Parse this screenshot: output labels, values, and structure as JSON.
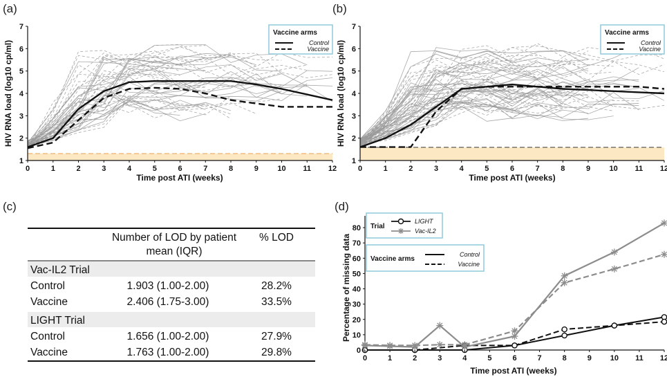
{
  "panels": {
    "a": "(a)",
    "b": "(b)",
    "c": "(c)",
    "d": "(d)"
  },
  "colors": {
    "individual": "#9a9a9a",
    "mean": "#111111",
    "lod_band": "#fde8c4",
    "lod_line": "#e8a050",
    "legend_border": "#8fc9dc",
    "series_light": "#111111",
    "series_vac_il2": "#8c8c8c",
    "table_stripe": "#ececec"
  },
  "chart_data": [
    {
      "id": "a",
      "type": "line",
      "xlabel": "Time post ATI (weeks)",
      "ylabel": "HIV RNA load (log10 cp/ml)",
      "xlim": [
        0,
        12
      ],
      "ylim": [
        1,
        7
      ],
      "xticks": [
        0,
        1,
        2,
        3,
        4,
        5,
        6,
        7,
        8,
        9,
        10,
        11,
        12
      ],
      "yticks": [
        1,
        2,
        3,
        4,
        5,
        6,
        7
      ],
      "lod": 1.3,
      "legend": {
        "title": "Vaccine arms",
        "position": "top-right",
        "items": [
          {
            "name": "Control",
            "style": "solid"
          },
          {
            "name": "Vaccine",
            "style": "dashed"
          }
        ]
      },
      "series": [
        {
          "name": "Control",
          "style": "solid",
          "x": [
            0,
            1,
            2,
            3,
            4,
            5,
            6,
            7,
            8,
            9,
            10,
            11,
            12
          ],
          "y": [
            1.6,
            2.0,
            3.3,
            4.1,
            4.5,
            4.55,
            4.55,
            4.55,
            4.55,
            4.4,
            4.2,
            3.95,
            3.7
          ]
        },
        {
          "name": "Vaccine",
          "style": "dashed",
          "x": [
            0,
            1,
            2,
            3,
            4,
            5,
            6,
            7,
            8,
            9,
            10,
            11,
            12
          ],
          "y": [
            1.55,
            1.8,
            2.8,
            3.8,
            4.2,
            4.25,
            4.2,
            4.0,
            3.7,
            3.55,
            3.4,
            3.4,
            3.4
          ]
        }
      ]
    },
    {
      "id": "b",
      "type": "line",
      "xlabel": "Time post ATI (weeks)",
      "ylabel": "HIV RNA load (log10 cp/ml)",
      "xlim": [
        0,
        12
      ],
      "ylim": [
        1,
        7
      ],
      "xticks": [
        0,
        1,
        2,
        3,
        4,
        5,
        6,
        7,
        8,
        9,
        10,
        11,
        12
      ],
      "yticks": [
        1,
        2,
        3,
        4,
        5,
        6,
        7
      ],
      "lod": 1.6,
      "legend": {
        "title": "Vaccine arms",
        "position": "top-right",
        "items": [
          {
            "name": "Control",
            "style": "solid"
          },
          {
            "name": "Vaccine",
            "style": "dashed"
          }
        ]
      },
      "series": [
        {
          "name": "Control",
          "style": "solid",
          "x": [
            0,
            1,
            2,
            3,
            4,
            5,
            6,
            7,
            8,
            9,
            10,
            11,
            12
          ],
          "y": [
            1.6,
            2.0,
            2.6,
            3.4,
            4.2,
            4.3,
            4.4,
            4.3,
            4.2,
            4.15,
            4.1,
            4.05,
            4.0
          ]
        },
        {
          "name": "Vaccine",
          "style": "dashed",
          "x": [
            0,
            1,
            2,
            3,
            4,
            5,
            6,
            7,
            8,
            9,
            10,
            11,
            12
          ],
          "y": [
            1.6,
            1.6,
            1.6,
            3.2,
            4.2,
            4.3,
            4.3,
            4.3,
            4.3,
            4.3,
            4.3,
            4.3,
            4.2
          ]
        }
      ]
    },
    {
      "id": "c",
      "type": "table",
      "columns": [
        "",
        "Number of LOD by patient mean (IQR)",
        "% LOD"
      ],
      "groups": [
        {
          "title": "Vac-IL2 Trial",
          "rows": [
            {
              "arm": "Control",
              "lod": "1.903 (1.00-2.00)",
              "pct": "28.2%"
            },
            {
              "arm": "Vaccine",
              "lod": "2.406 (1.75-3.00)",
              "pct": "33.5%"
            }
          ]
        },
        {
          "title": "LIGHT Trial",
          "rows": [
            {
              "arm": "Control",
              "lod": "1.656 (1.00-2.00)",
              "pct": "27.9%"
            },
            {
              "arm": "Vaccine",
              "lod": "1.763 (1.00-2.00)",
              "pct": "29.8%"
            }
          ]
        }
      ]
    },
    {
      "id": "d",
      "type": "line",
      "xlabel": "Time post ATI (weeks)",
      "ylabel": "Percentage of missing data",
      "xlim": [
        0,
        12
      ],
      "ylim": [
        0,
        85
      ],
      "xticks": [
        0,
        1,
        2,
        3,
        4,
        5,
        6,
        7,
        8,
        9,
        10,
        11,
        12
      ],
      "yticks": [
        0,
        10,
        20,
        30,
        40,
        50,
        60,
        70,
        80
      ],
      "legend_trial": {
        "title": "Trial",
        "position": "top-left",
        "items": [
          {
            "name": "LIGHT",
            "marker": "circle"
          },
          {
            "name": "Vac-IL2",
            "marker": "star"
          }
        ]
      },
      "legend_arms": {
        "title": "Vaccine arms",
        "position": "top-left",
        "items": [
          {
            "name": "Control",
            "style": "solid"
          },
          {
            "name": "Vaccine",
            "style": "dashed"
          }
        ]
      },
      "series": [
        {
          "name": "LIGHT Control",
          "trial": "LIGHT",
          "arm": "Control",
          "style": "solid",
          "marker": "circle",
          "x": [
            0,
            2,
            4,
            6,
            8,
            10,
            12
          ],
          "y": [
            0,
            0,
            0,
            3,
            9.5,
            16,
            21.5
          ]
        },
        {
          "name": "LIGHT Vaccine",
          "trial": "LIGHT",
          "arm": "Vaccine",
          "style": "dashed",
          "marker": "circle",
          "x": [
            0,
            2,
            4,
            6,
            8,
            10,
            12
          ],
          "y": [
            0,
            0,
            3,
            3,
            13.5,
            16,
            18.5
          ]
        },
        {
          "name": "Vac-IL2 Control",
          "trial": "Vac-IL2",
          "arm": "Control",
          "style": "solid",
          "marker": "star",
          "x": [
            0,
            1,
            2,
            3,
            4,
            6,
            8,
            10,
            12
          ],
          "y": [
            3,
            2.5,
            2,
            16,
            2,
            9,
            48.5,
            64,
            83
          ]
        },
        {
          "name": "Vac-IL2 Vaccine",
          "trial": "Vac-IL2",
          "arm": "Vaccine",
          "style": "dashed",
          "marker": "star",
          "x": [
            0,
            1,
            2,
            3,
            4,
            6,
            8,
            10,
            12
          ],
          "y": [
            3.5,
            3,
            3,
            3.5,
            3.5,
            12.5,
            44,
            53,
            62.5
          ]
        }
      ]
    }
  ]
}
